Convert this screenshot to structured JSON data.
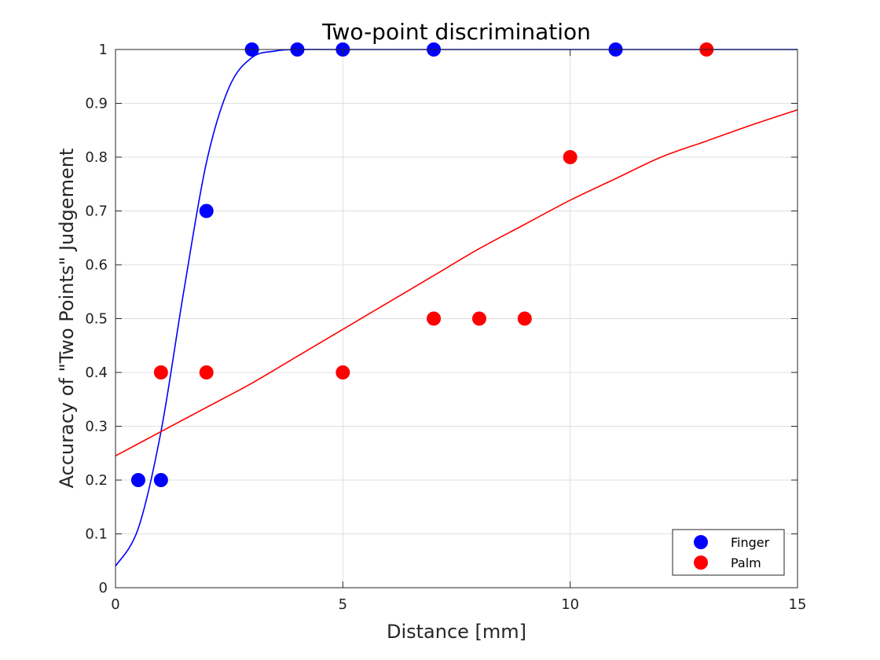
{
  "chart_data": {
    "type": "scatter",
    "title": "Two-point discrimination",
    "xlabel": "Distance [mm]",
    "ylabel": "Accuracy of \"Two Points\" Judgement",
    "xlim": [
      0,
      15
    ],
    "ylim": [
      0,
      1
    ],
    "xticks": [
      0,
      5,
      10,
      15
    ],
    "yticks": [
      0,
      0.1,
      0.2,
      0.3,
      0.4,
      0.5,
      0.6,
      0.7,
      0.8,
      0.9,
      1
    ],
    "xtick_labels": [
      "0",
      "5",
      "10",
      "15"
    ],
    "ytick_labels": [
      "0",
      "0.1",
      "0.2",
      "0.3",
      "0.4",
      "0.5",
      "0.6",
      "0.7",
      "0.8",
      "0.9",
      "1"
    ],
    "grid": true,
    "legend_position": "bottom-right",
    "series": [
      {
        "name": "Finger",
        "color": "#0000ff",
        "points": [
          [
            0.5,
            0.2
          ],
          [
            1,
            0.2
          ],
          [
            2,
            0.7
          ],
          [
            3,
            1
          ],
          [
            4,
            1
          ],
          [
            5,
            1
          ],
          [
            7,
            1
          ],
          [
            11,
            1
          ]
        ],
        "fit_curve": [
          [
            0,
            0.04
          ],
          [
            0.5,
            0.11
          ],
          [
            1,
            0.29
          ],
          [
            1.5,
            0.55
          ],
          [
            2,
            0.79
          ],
          [
            2.5,
            0.93
          ],
          [
            3,
            0.985
          ],
          [
            3.5,
            0.997
          ],
          [
            4,
            1
          ],
          [
            5,
            1
          ],
          [
            15,
            1
          ]
        ]
      },
      {
        "name": "Palm",
        "color": "#ff0000",
        "points": [
          [
            1,
            0.4
          ],
          [
            2,
            0.4
          ],
          [
            5,
            0.4
          ],
          [
            7,
            0.5
          ],
          [
            8,
            0.5
          ],
          [
            9,
            0.5
          ],
          [
            10,
            0.8
          ],
          [
            13,
            1
          ]
        ],
        "fit_curve": [
          [
            0,
            0.245
          ],
          [
            1,
            0.29
          ],
          [
            2,
            0.335
          ],
          [
            3,
            0.38
          ],
          [
            4,
            0.43
          ],
          [
            5,
            0.48
          ],
          [
            6,
            0.53
          ],
          [
            7,
            0.58
          ],
          [
            8,
            0.63
          ],
          [
            9,
            0.675
          ],
          [
            10,
            0.72
          ],
          [
            11,
            0.76
          ],
          [
            12,
            0.8
          ],
          [
            13,
            0.83
          ],
          [
            14,
            0.86
          ],
          [
            15,
            0.888
          ]
        ]
      }
    ]
  }
}
